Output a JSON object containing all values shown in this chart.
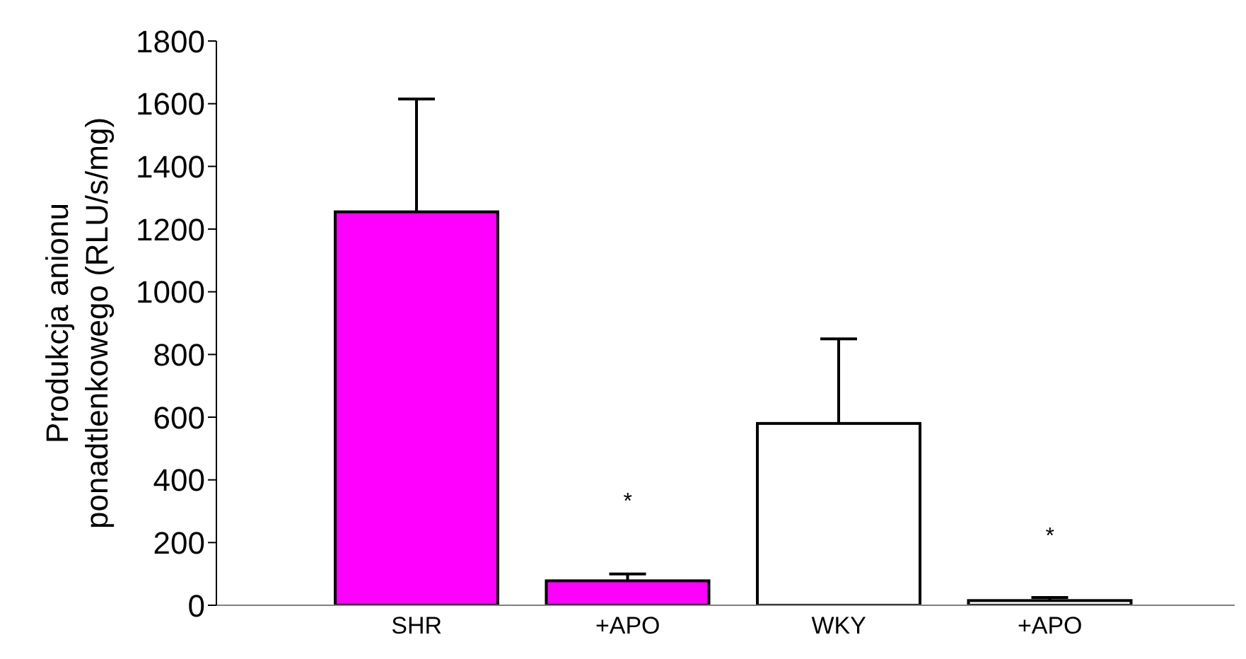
{
  "chart_data": {
    "type": "bar",
    "ylabel": "Produkcja anionu\nponadtlenkowego (RLU/s/mg)",
    "categories": [
      "SHR",
      "+APO",
      "WKY",
      "+APO"
    ],
    "values": [
      1255,
      78,
      580,
      15
    ],
    "colors": [
      "#ff00ff",
      "#ff00ff",
      "#ffffff",
      "#ffffff"
    ],
    "errors": [
      [
        1255,
        1615
      ],
      [
        78,
        100
      ],
      [
        580,
        850
      ],
      [
        15,
        25
      ]
    ],
    "ylim": [
      0,
      1800
    ],
    "yticks": [
      0,
      200,
      400,
      600,
      800,
      1000,
      1200,
      1400,
      1600,
      1800
    ],
    "annotations": [
      "*",
      "*"
    ],
    "grid": false,
    "legend": false
  }
}
